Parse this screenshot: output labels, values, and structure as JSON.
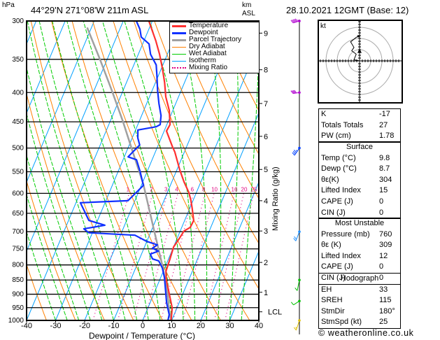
{
  "header": {
    "pressure_unit": "hPa",
    "location": "44°29'N  271°08'W  211m  ASL",
    "km_unit_line1": "km",
    "km_unit_line2": "ASL",
    "datetime": "28.10.2021  12GMT  (Base: 12)"
  },
  "legend": [
    {
      "label": "Temperature",
      "color": "#ff3030"
    },
    {
      "label": "Dewpoint",
      "color": "#1030ff"
    },
    {
      "label": "Parcel Trajectory",
      "color": "#a0a0a0"
    },
    {
      "label": "Dry Adiabat",
      "color": "#ff8000"
    },
    {
      "label": "Wet Adiabat",
      "color": "#00cc00"
    },
    {
      "label": "Isotherm",
      "color": "#00a0ff"
    },
    {
      "label": "Mixing Ratio",
      "color": "#e0007f"
    }
  ],
  "axis": {
    "mixing_ratio_label": "Mixing Ratio  (g/kg)"
  },
  "chart_data": {
    "type": "line",
    "title": "Skew-T log-P sounding",
    "xlabel": "Dewpoint / Temperature (°C)",
    "ylabel": "hPa",
    "xlim": [
      -40,
      40
    ],
    "ylim": [
      1000,
      300
    ],
    "x_ticks": [
      "-40",
      "-30",
      "-20",
      "-10",
      "0",
      "10",
      "20",
      "30",
      "40"
    ],
    "pressure_ticks": [
      "300",
      "350",
      "400",
      "450",
      "500",
      "550",
      "600",
      "650",
      "700",
      "750",
      "800",
      "850",
      "900",
      "950",
      "1000"
    ],
    "km_labels": [
      {
        "label": "9",
        "p": 315
      },
      {
        "label": "8",
        "p": 365
      },
      {
        "label": "7",
        "p": 418
      },
      {
        "label": "6",
        "p": 477
      },
      {
        "label": "5",
        "p": 545
      },
      {
        "label": "4",
        "p": 618
      },
      {
        "label": "3",
        "p": 698
      },
      {
        "label": "2",
        "p": 792
      },
      {
        "label": "1",
        "p": 893
      },
      {
        "label": "LCL",
        "p": 966
      }
    ],
    "mixing_ratio_lines": [
      "1",
      "2",
      "3",
      "4",
      "6",
      "8",
      "10",
      "16",
      "20",
      "25"
    ],
    "series": [
      {
        "name": "Temperature",
        "color": "#ff3030",
        "points": [
          [
            1000,
            9.8
          ],
          [
            950,
            8.3
          ],
          [
            850,
            2.3
          ],
          [
            821,
            0.9
          ],
          [
            781,
            0.5
          ],
          [
            744,
            0.0
          ],
          [
            718,
            0.8
          ],
          [
            698,
            1.3
          ],
          [
            688,
            2.9
          ],
          [
            669,
            3.1
          ],
          [
            638,
            0.9
          ],
          [
            618,
            -0.7
          ],
          [
            598,
            -2.6
          ],
          [
            573,
            -5.8
          ],
          [
            546,
            -9.0
          ],
          [
            508,
            -13.3
          ],
          [
            498,
            -14.8
          ],
          [
            467,
            -19.2
          ],
          [
            455,
            -18.9
          ],
          [
            430,
            -21.2
          ],
          [
            407,
            -24.4
          ],
          [
            384,
            -26.9
          ],
          [
            362,
            -29.8
          ],
          [
            343,
            -32.7
          ],
          [
            325,
            -35.9
          ],
          [
            300,
            -41.2
          ]
        ]
      },
      {
        "name": "Dewpoint",
        "color": "#1030ff",
        "points": [
          [
            1000,
            8.7
          ],
          [
            977,
            8.3
          ],
          [
            932,
            5.7
          ],
          [
            842,
            1.3
          ],
          [
            810,
            -0.8
          ],
          [
            787,
            -3.1
          ],
          [
            781,
            -5.5
          ],
          [
            766,
            -7.0
          ],
          [
            757,
            -4.6
          ],
          [
            748,
            -7.1
          ],
          [
            738,
            -5.9
          ],
          [
            728,
            -10.0
          ],
          [
            710,
            -15.0
          ],
          [
            703,
            -31.2
          ],
          [
            692,
            -33.5
          ],
          [
            682,
            -26.8
          ],
          [
            669,
            -33.0
          ],
          [
            623,
            -38.5
          ],
          [
            618,
            -22.4
          ],
          [
            581,
            -19.3
          ],
          [
            549,
            -22.5
          ],
          [
            524,
            -25.4
          ],
          [
            518,
            -28.7
          ],
          [
            508,
            -27.8
          ],
          [
            494,
            -26.4
          ],
          [
            480,
            -28.1
          ],
          [
            465,
            -29.2
          ],
          [
            459,
            -23.4
          ],
          [
            455,
            -22.3
          ],
          [
            439,
            -23.3
          ],
          [
            418,
            -25.8
          ],
          [
            397,
            -28.1
          ],
          [
            373,
            -30.6
          ],
          [
            358,
            -32.3
          ],
          [
            343,
            -35.8
          ],
          [
            329,
            -37.8
          ],
          [
            320,
            -41.5
          ],
          [
            310,
            -43.1
          ],
          [
            300,
            -45.5
          ]
        ]
      },
      {
        "name": "Parcel Trajectory",
        "color": "#a0a0a0",
        "points": [
          [
            1000,
            9.8
          ],
          [
            966,
            7.9
          ],
          [
            900,
            4.8
          ],
          [
            810,
            -0.6
          ],
          [
            700,
            -8.8
          ],
          [
            578,
            -19.5
          ],
          [
            508,
            -27.8
          ],
          [
            450,
            -35.5
          ],
          [
            395,
            -44.2
          ],
          [
            350,
            -52.5
          ],
          [
            308,
            -61.5
          ]
        ]
      }
    ],
    "winds": [
      {
        "p": 300,
        "dir": 260,
        "spd": 45,
        "color": "#b000d0"
      },
      {
        "p": 400,
        "dir": 275,
        "spd": 40,
        "color": "#b000d0"
      },
      {
        "p": 500,
        "dir": 230,
        "spd": 25,
        "color": "#0040ff"
      },
      {
        "p": 700,
        "dir": 215,
        "spd": 20,
        "color": "#1e90ff"
      },
      {
        "p": 850,
        "dir": 200,
        "spd": 10,
        "color": "#00c000"
      },
      {
        "p": 925,
        "dir": 250,
        "spd": 10,
        "color": "#00c000"
      },
      {
        "p": 1000,
        "dir": 210,
        "spd": 5,
        "color": "#e0c000"
      }
    ]
  },
  "hodograph": {
    "unit_label": "kt",
    "trace_uv": [
      [
        0,
        0
      ],
      [
        -5,
        1
      ],
      [
        -3,
        6
      ],
      [
        -7,
        9
      ],
      [
        -5,
        12
      ],
      [
        -8,
        17
      ],
      [
        -3,
        21
      ],
      [
        -1,
        22
      ]
    ],
    "storm_uv": [
      0,
      9
    ]
  },
  "indices": [
    {
      "label": "K",
      "value": "-17"
    },
    {
      "label": "Totals Totals",
      "value": "27"
    },
    {
      "label": "PW (cm)",
      "value": "1.78"
    }
  ],
  "surface": {
    "title": "Surface",
    "rows": [
      {
        "label": "Temp (°C)",
        "value": "9.8"
      },
      {
        "label": "Dewp (°C)",
        "value": "8.7"
      },
      {
        "label": "θε(K)",
        "value": "304"
      },
      {
        "label": "Lifted Index",
        "value": "15"
      },
      {
        "label": "CAPE (J)",
        "value": "0"
      },
      {
        "label": "CIN (J)",
        "value": "0"
      }
    ]
  },
  "most_unstable": {
    "title": "Most Unstable",
    "rows": [
      {
        "label": "Pressure (mb)",
        "value": "760"
      },
      {
        "label": "θε (K)",
        "value": "309"
      },
      {
        "label": "Lifted Index",
        "value": "12"
      },
      {
        "label": "CAPE (J)",
        "value": "0"
      },
      {
        "label": "CIN (J)",
        "value": "0"
      }
    ]
  },
  "hodograph_table": {
    "title": "Hodograph",
    "rows": [
      {
        "label": "EH",
        "value": "33"
      },
      {
        "label": "SREH",
        "value": "115"
      },
      {
        "label": "StmDir",
        "value": "180°"
      },
      {
        "label": "StmSpd (kt)",
        "value": "25"
      }
    ]
  },
  "footer": "© weatheronline.co.uk"
}
